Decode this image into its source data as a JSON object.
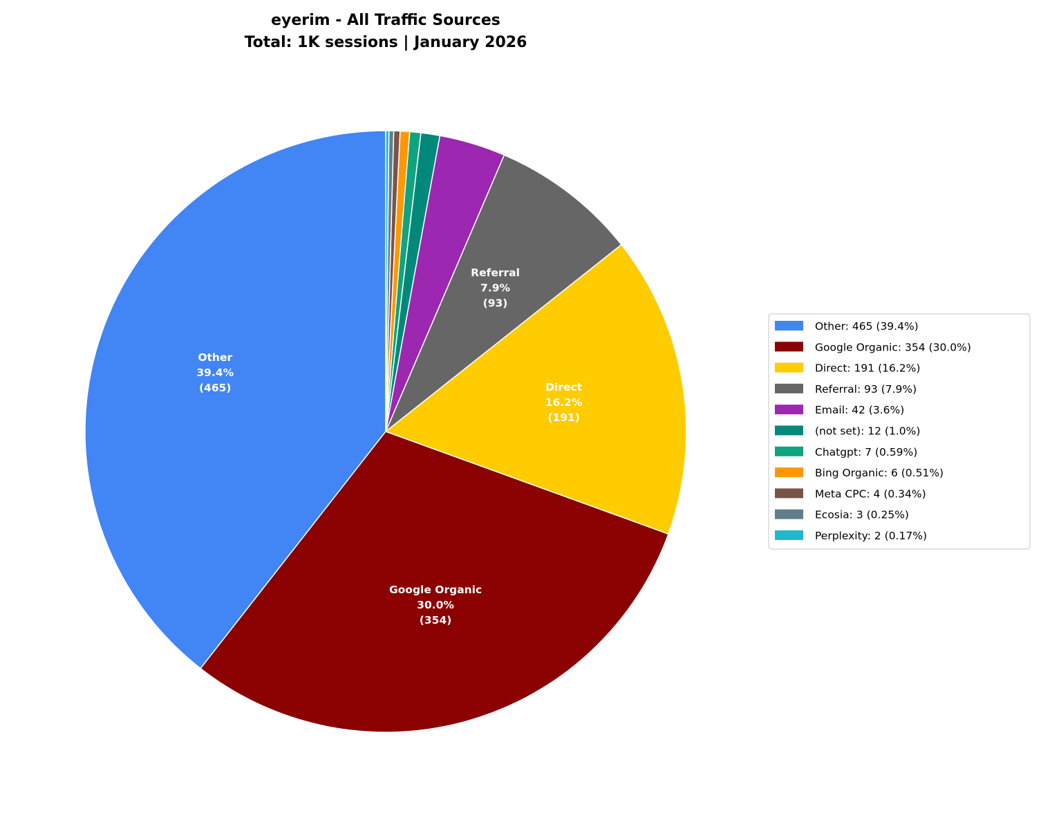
{
  "chart_data": {
    "type": "pie",
    "title": [
      "eyerim - All Traffic Sources",
      "Total: 1K sessions | January 2026"
    ],
    "start_angle_deg": 90,
    "direction": "counterclockwise",
    "legend_position": "right",
    "slices": [
      {
        "name": "Other",
        "value": 465,
        "pct": "39.4%",
        "color": "#4285F4",
        "legend": "Other: 465 (39.4%)",
        "labeled": true
      },
      {
        "name": "Google Organic",
        "value": 354,
        "pct": "30.0%",
        "color": "#8B0000",
        "legend": "Google Organic: 354 (30.0%)",
        "labeled": true
      },
      {
        "name": "Direct",
        "value": 191,
        "pct": "16.2%",
        "color": "#FFCC00",
        "legend": "Direct: 191 (16.2%)",
        "labeled": true
      },
      {
        "name": "Referral",
        "value": 93,
        "pct": "7.9%",
        "color": "#666666",
        "legend": "Referral: 93 (7.9%)",
        "labeled": true
      },
      {
        "name": "Email",
        "value": 42,
        "pct": "3.6%",
        "color": "#9C27B0",
        "legend": "Email: 42 (3.6%)",
        "labeled": false
      },
      {
        "name": "(not set)",
        "value": 12,
        "pct": "1.0%",
        "color": "#00897B",
        "legend": "(not set): 12 (1.0%)",
        "labeled": false
      },
      {
        "name": "Chatgpt",
        "value": 7,
        "pct": "0.59%",
        "color": "#10A37F",
        "legend": "Chatgpt: 7 (0.59%)",
        "labeled": false
      },
      {
        "name": "Bing Organic",
        "value": 6,
        "pct": "0.51%",
        "color": "#FF9800",
        "legend": "Bing Organic: 6 (0.51%)",
        "labeled": false
      },
      {
        "name": "Meta CPC",
        "value": 4,
        "pct": "0.34%",
        "color": "#795548",
        "legend": "Meta CPC: 4 (0.34%)",
        "labeled": false
      },
      {
        "name": "Ecosia",
        "value": 3,
        "pct": "0.25%",
        "color": "#607D8B",
        "legend": "Ecosia: 3 (0.25%)",
        "labeled": false
      },
      {
        "name": "Perplexity",
        "value": 2,
        "pct": "0.17%",
        "color": "#20B8CD",
        "legend": "Perplexity: 2 (0.17%)",
        "labeled": false
      }
    ]
  }
}
